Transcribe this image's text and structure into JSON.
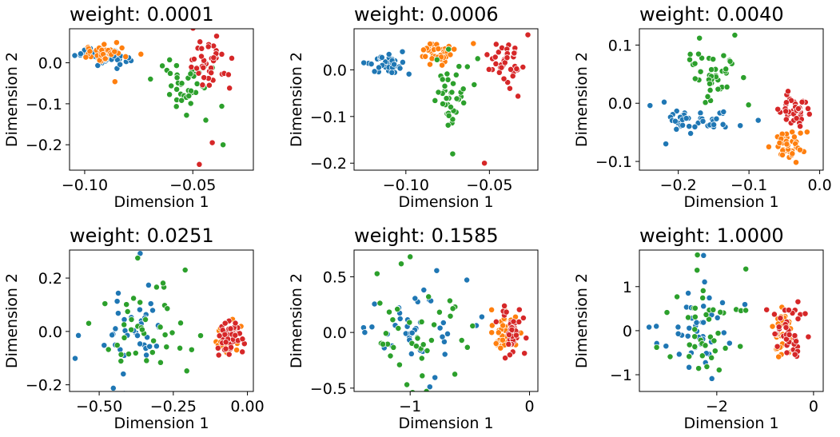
{
  "figure": {
    "colors": {
      "blue": "#1f77b4",
      "orange": "#ff7f0e",
      "green": "#2ca02c",
      "red": "#d62728"
    },
    "marker_edge_color": "#ffffff"
  },
  "chart_data": [
    {
      "type": "scatter",
      "title": "weight: 0.0001",
      "xlabel": "Dimension 1",
      "ylabel": "Dimension 2",
      "xlim": [
        -0.107,
        -0.022
      ],
      "ylim": [
        -0.262,
        0.083
      ],
      "xticks": [
        -0.1,
        -0.05
      ],
      "xtick_labels": [
        "−0.10",
        "−0.05"
      ],
      "yticks": [
        0.0,
        -0.1,
        -0.2
      ],
      "ytick_labels": [
        "0.0",
        "−0.1",
        "−0.2"
      ],
      "grid": false,
      "legend": null,
      "series": [
        {
          "color": "blue",
          "center": [
            -0.091,
            0.016
          ],
          "spread": [
            0.006,
            0.012
          ],
          "count": 40
        },
        {
          "color": "orange",
          "center": [
            -0.091,
            0.024
          ],
          "spread": [
            0.006,
            0.012
          ],
          "count": 40,
          "extra_points": [
            [
              -0.086,
              -0.046
            ],
            [
              -0.074,
              0.021
            ]
          ]
        },
        {
          "color": "green",
          "center": [
            -0.052,
            -0.045
          ],
          "spread": [
            0.007,
            0.035
          ],
          "count": 40,
          "extra_points": [
            [
              -0.044,
              -0.14
            ],
            [
              -0.036,
              -0.2
            ]
          ]
        },
        {
          "color": "red",
          "center": [
            -0.042,
            0.0
          ],
          "spread": [
            0.006,
            0.03
          ],
          "count": 40,
          "extra_points": [
            [
              -0.047,
              -0.248
            ],
            [
              -0.041,
              -0.195
            ],
            [
              -0.039,
              0.065
            ]
          ]
        }
      ]
    },
    {
      "type": "scatter",
      "title": "weight: 0.0006",
      "xlabel": "Dimension 1",
      "ylabel": "Dimension 2",
      "xlim": [
        -0.131,
        -0.021
      ],
      "ylim": [
        -0.215,
        0.088
      ],
      "xticks": [
        -0.1,
        -0.05
      ],
      "xtick_labels": [
        "−0.10",
        "−0.05"
      ],
      "yticks": [
        0.0,
        -0.1,
        -0.2
      ],
      "ytick_labels": [
        "0.0",
        "−0.1",
        "−0.2"
      ],
      "grid": false,
      "legend": null,
      "series": [
        {
          "color": "blue",
          "center": [
            -0.112,
            0.01
          ],
          "spread": [
            0.006,
            0.012
          ],
          "count": 40
        },
        {
          "color": "orange",
          "center": [
            -0.08,
            0.036
          ],
          "spread": [
            0.006,
            0.012
          ],
          "count": 40
        },
        {
          "color": "green",
          "center": [
            -0.071,
            -0.06
          ],
          "spread": [
            0.007,
            0.04
          ],
          "count": 40,
          "extra_points": [
            [
              -0.072,
              -0.18
            ],
            [
              -0.057,
              0.024
            ]
          ]
        },
        {
          "color": "red",
          "center": [
            -0.04,
            0.012
          ],
          "spread": [
            0.006,
            0.025
          ],
          "count": 40,
          "extra_points": [
            [
              -0.053,
              -0.2
            ],
            [
              -0.027,
              0.075
            ]
          ]
        }
      ]
    },
    {
      "type": "scatter",
      "title": "weight: 0.0040",
      "xlabel": "Dimension 1",
      "ylabel": "Dimension 2",
      "xlim": [
        -0.255,
        0.005
      ],
      "ylim": [
        -0.115,
        0.128
      ],
      "xticks": [
        -0.2,
        -0.1,
        0.0
      ],
      "xtick_labels": [
        "−0.2",
        "−0.1",
        "0.0"
      ],
      "yticks": [
        0.1,
        0.0,
        -0.1
      ],
      "ytick_labels": [
        "0.1",
        "0.0",
        "−0.1"
      ],
      "grid": false,
      "legend": null,
      "series": [
        {
          "color": "blue",
          "center": [
            -0.165,
            -0.028
          ],
          "spread": [
            0.035,
            0.012
          ],
          "count": 40,
          "extra_points": [
            [
              -0.24,
              -0.004
            ],
            [
              -0.22,
              0.002
            ]
          ]
        },
        {
          "color": "orange",
          "center": [
            -0.045,
            -0.07
          ],
          "spread": [
            0.012,
            0.013
          ],
          "count": 40
        },
        {
          "color": "green",
          "center": [
            -0.155,
            0.055
          ],
          "spread": [
            0.025,
            0.03
          ],
          "count": 40,
          "extra_points": [
            [
              -0.17,
              0.112
            ],
            [
              -0.12,
              0.117
            ]
          ]
        },
        {
          "color": "red",
          "center": [
            -0.035,
            -0.015
          ],
          "spread": [
            0.011,
            0.017
          ],
          "count": 40
        }
      ]
    },
    {
      "type": "scatter",
      "title": "weight: 0.0251",
      "xlabel": "Dimension 1",
      "ylabel": "Dimension 2",
      "xlim": [
        -0.6,
        0.02
      ],
      "ylim": [
        -0.225,
        0.305
      ],
      "xticks": [
        -0.5,
        -0.25,
        0.0
      ],
      "xtick_labels": [
        "−0.50",
        "−0.25",
        "0.00"
      ],
      "yticks": [
        0.2,
        0.0,
        -0.2
      ],
      "ytick_labels": [
        "0.2",
        "0.0",
        "−0.2"
      ],
      "grid": false,
      "legend": null,
      "series": [
        {
          "color": "blue",
          "center": [
            -0.39,
            0.0
          ],
          "spread": [
            0.07,
            0.1
          ],
          "count": 40,
          "extra_points": [
            [
              -0.57,
              -0.015
            ]
          ]
        },
        {
          "color": "green",
          "center": [
            -0.35,
            0.02
          ],
          "spread": [
            0.08,
            0.1
          ],
          "count": 40,
          "extra_points": [
            [
              -0.37,
              0.275
            ],
            [
              -0.21,
              0.23
            ]
          ]
        },
        {
          "color": "orange",
          "center": [
            -0.07,
            -0.02
          ],
          "spread": [
            0.02,
            0.035
          ],
          "count": 40
        },
        {
          "color": "red",
          "center": [
            -0.06,
            -0.02
          ],
          "spread": [
            0.02,
            0.035
          ],
          "count": 40
        }
      ]
    },
    {
      "type": "scatter",
      "title": "weight: 0.1585",
      "xlabel": "Dimension 1",
      "ylabel": "Dimension 2",
      "xlim": [
        -1.47,
        0.07
      ],
      "ylim": [
        -0.53,
        0.74
      ],
      "xticks": [
        -1.0,
        0.0
      ],
      "xtick_labels": [
        "−1",
        "0"
      ],
      "yticks": [
        0.5,
        0.0,
        -0.5
      ],
      "ytick_labels": [
        "0.5",
        "0.0",
        "−0.5"
      ],
      "grid": false,
      "legend": null,
      "series": [
        {
          "color": "blue",
          "center": [
            -0.95,
            0.0
          ],
          "spread": [
            0.2,
            0.22
          ],
          "count": 40,
          "extra_points": [
            [
              -1.38,
              0.0
            ],
            [
              -1.32,
              0.05
            ]
          ]
        },
        {
          "color": "green",
          "center": [
            -0.95,
            0.0
          ],
          "spread": [
            0.18,
            0.22
          ],
          "count": 40,
          "extra_points": [
            [
              -1.0,
              0.68
            ]
          ]
        },
        {
          "color": "orange",
          "center": [
            -0.22,
            0.0
          ],
          "spread": [
            0.05,
            0.09
          ],
          "count": 40
        },
        {
          "color": "red",
          "center": [
            -0.15,
            0.0
          ],
          "spread": [
            0.06,
            0.12
          ],
          "count": 40
        }
      ]
    },
    {
      "type": "scatter",
      "title": "weight: 1.0000",
      "xlabel": "Dimension 1",
      "ylabel": "Dimension 2",
      "xlim": [
        -3.6,
        0.2
      ],
      "ylim": [
        -1.38,
        1.83
      ],
      "xticks": [
        -2.0,
        0.0
      ],
      "xtick_labels": [
        "−2",
        "0"
      ],
      "yticks": [
        1.0,
        0.0,
        -1.0
      ],
      "ytick_labels": [
        "1",
        "0",
        "−1"
      ],
      "grid": false,
      "legend": null,
      "series": [
        {
          "color": "blue",
          "center": [
            -2.4,
            0.1
          ],
          "spread": [
            0.45,
            0.55
          ],
          "count": 40,
          "extra_points": [
            [
              -3.4,
              0.08
            ],
            [
              -3.25,
              0.1
            ]
          ]
        },
        {
          "color": "green",
          "center": [
            -2.3,
            0.0
          ],
          "spread": [
            0.4,
            0.55
          ],
          "count": 40,
          "extra_points": [
            [
              -2.4,
              1.72
            ],
            [
              -1.4,
              1.4
            ]
          ]
        },
        {
          "color": "orange",
          "center": [
            -0.6,
            0.0
          ],
          "spread": [
            0.12,
            0.3
          ],
          "count": 40
        },
        {
          "color": "red",
          "center": [
            -0.5,
            0.0
          ],
          "spread": [
            0.15,
            0.35
          ],
          "count": 40
        }
      ]
    }
  ]
}
